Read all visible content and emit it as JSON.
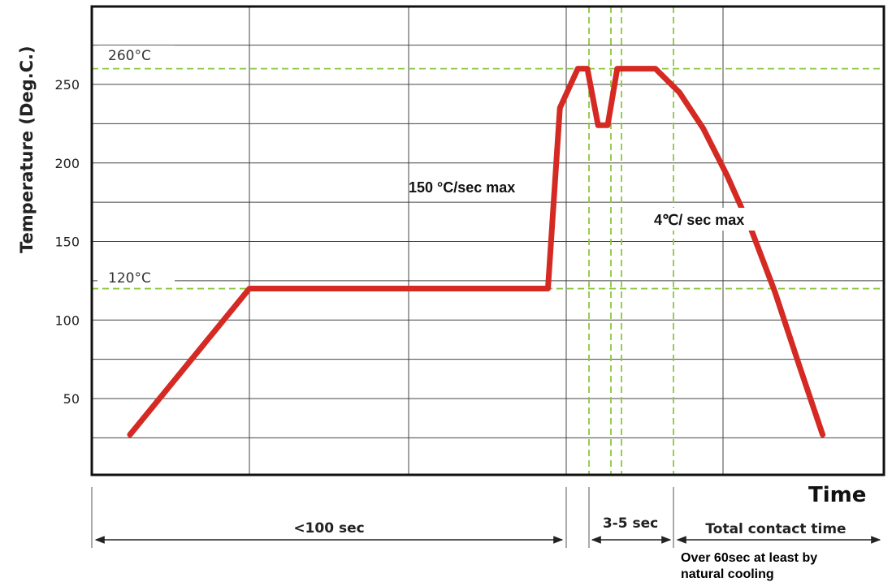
{
  "chart_data": {
    "type": "line",
    "title": "",
    "ylabel": "Temperature (Deg.C.)",
    "xlabel": "Time",
    "ylim": [
      0,
      300
    ],
    "yticks": [
      50,
      100,
      150,
      200,
      250
    ],
    "grid": true,
    "reference_lines": [
      {
        "value": 260,
        "label": "260°C",
        "color": "#8cc63f"
      },
      {
        "value": 120,
        "label": "120°C",
        "color": "#8cc63f"
      }
    ],
    "series": [
      {
        "color": "#d42a23",
        "points": [
          [
            0,
            27
          ],
          [
            1,
            120
          ],
          [
            3.5,
            120
          ],
          [
            3.6,
            235
          ],
          [
            3.75,
            260
          ],
          [
            3.83,
            260
          ],
          [
            3.92,
            224
          ],
          [
            4.0,
            224
          ],
          [
            4.08,
            260
          ],
          [
            4.4,
            260
          ],
          [
            4.6,
            245
          ],
          [
            4.8,
            222
          ],
          [
            5.0,
            192
          ],
          [
            5.2,
            158
          ],
          [
            5.4,
            118
          ],
          [
            5.6,
            72
          ],
          [
            5.8,
            27
          ]
        ]
      }
    ],
    "annotations": [
      {
        "text": "150 °C/sec max"
      },
      {
        "text": "4℃/ sec max"
      }
    ],
    "intervals": [
      {
        "label": "<100 sec"
      },
      {
        "label": "3-5 sec"
      },
      {
        "label": "Total contact time"
      }
    ],
    "notes": [
      "Over 60sec at least by",
      "natural cooling"
    ]
  }
}
